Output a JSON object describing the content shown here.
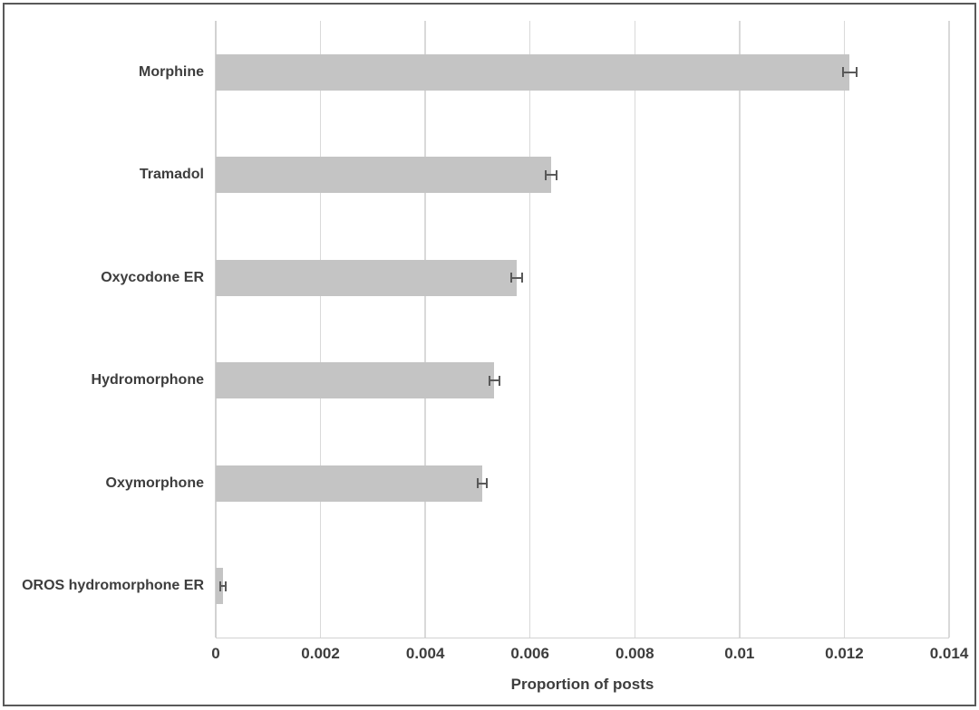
{
  "chart_data": {
    "type": "bar",
    "orientation": "horizontal",
    "title": "",
    "xlabel": "Proportion of posts",
    "ylabel": "",
    "categories": [
      "Morphine",
      "Tramadol",
      "Oxycodone ER",
      "Hydromorphone",
      "Oxymorphone",
      "OROS hydromorphone ER"
    ],
    "values": [
      0.0121,
      0.0064,
      0.00575,
      0.00532,
      0.00509,
      0.00014
    ],
    "errors": [
      0.00013,
      0.0001,
      0.0001,
      9e-05,
      9e-05,
      5e-05
    ],
    "xlim": [
      0,
      0.014
    ],
    "xticks": [
      0,
      0.002,
      0.004,
      0.006,
      0.008,
      0.01,
      0.012,
      0.014
    ],
    "xtick_labels": [
      "0",
      "0.002",
      "0.004",
      "0.006",
      "0.008",
      "0.01",
      "0.012",
      "0.014"
    ],
    "grid": "vertical-gridlines",
    "legend": "none",
    "colors": {
      "bar_fill": "#c4c4c4",
      "gridline": "#d9d9d9",
      "axis_line": "#d2d2d2",
      "error_bar": "#595959",
      "text": "#3d3d3d",
      "figure_border": "#595959",
      "background": "#ffffff"
    }
  }
}
